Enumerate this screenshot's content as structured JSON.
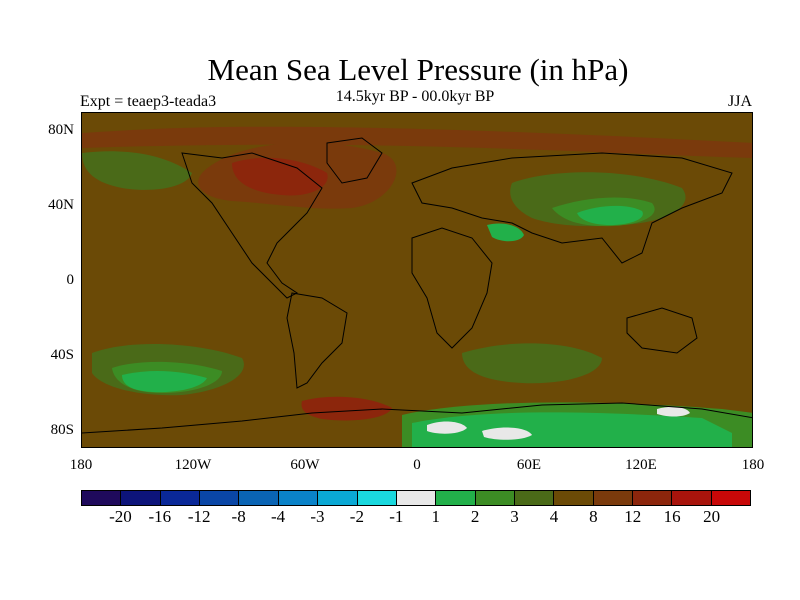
{
  "title": "Mean Sea Level Pressure (in hPa)",
  "subtitle": "14.5kyr BP - 00.0kyr BP",
  "experiment_label": "Expt = teaep3-teada3",
  "season_label": "JJA",
  "map": {
    "lat_ticks": [
      "80N",
      "40N",
      "0",
      "40S",
      "80S"
    ],
    "lon_ticks": [
      "180",
      "120W",
      "60W",
      "0",
      "60E",
      "120E",
      "180"
    ],
    "background_color": "#6b4a06"
  },
  "legend": {
    "colors": [
      "#1f0a5c",
      "#0d147a",
      "#0a2898",
      "#0a46a6",
      "#0a64b4",
      "#0a82c8",
      "#0aa8d4",
      "#1ad8de",
      "#e8e8e8",
      "#22b04a",
      "#3c8c24",
      "#4a6a18",
      "#6b4a06",
      "#7a3a0c",
      "#8c260c",
      "#a8140c",
      "#c80808"
    ],
    "labels": [
      "-20",
      "-16",
      "-12",
      "-8",
      "-4",
      "-3",
      "-2",
      "-1",
      "1",
      "2",
      "3",
      "4",
      "8",
      "12",
      "16",
      "20"
    ]
  }
}
